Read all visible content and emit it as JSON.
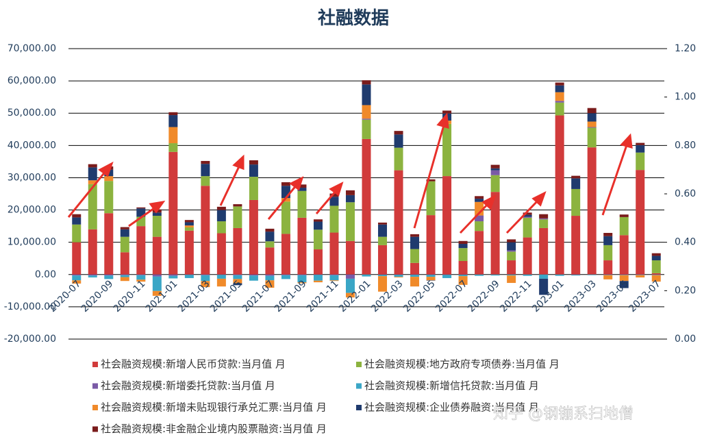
{
  "chart_data": {
    "type": "stacked_bar",
    "title": "社融数据",
    "watermark": "知乎 @钢镚系扫地僧",
    "categories": [
      "2020-07",
      null,
      "2020-09",
      null,
      "2020-11",
      null,
      "2021-01",
      null,
      "2021-03",
      null,
      "2021-05",
      null,
      "2021-07",
      null,
      "2021-09",
      null,
      "2021-11",
      null,
      "2022-01",
      null,
      "2022-03",
      null,
      "2022-05",
      null,
      "2022-07",
      null,
      "2022-09",
      null,
      "2022-11",
      null,
      "2023-01",
      null,
      "2023-03",
      null,
      "2023-05",
      null,
      "2023-07"
    ],
    "series": [
      {
        "name": "社会融资规模:新增人民币贷款:当月值 月",
        "color": "#d13b3b",
        "values": [
          10000,
          14000,
          19000,
          6900,
          15000,
          11700,
          38000,
          13600,
          27500,
          12800,
          14400,
          23100,
          8400,
          12600,
          17600,
          7800,
          13000,
          10400,
          42000,
          9100,
          32300,
          3600,
          18400,
          30500,
          4200,
          13500,
          25600,
          4400,
          11500,
          14400,
          49300,
          18200,
          39400,
          4400,
          12200,
          32400,
          400
        ]
      },
      {
        "name": "社会融资规模:地方政府专项债券:当月值 月",
        "color": "#8cb33f",
        "values": [
          5500,
          14000,
          10000,
          4800,
          2900,
          6500,
          2700,
          1000,
          3000,
          3700,
          6700,
          7200,
          1900,
          10000,
          8300,
          6100,
          8300,
          12000,
          6000,
          2600,
          7000,
          4300,
          10500,
          16200,
          4000,
          3000,
          5200,
          2700,
          6100,
          2700,
          4000,
          8300,
          6100,
          4700,
          5600,
          5400,
          4000
        ]
      },
      {
        "name": "社会融资规模:新增委托贷款:当月值 月",
        "color": "#7a5aa6",
        "values": [
          -300,
          -300,
          -300,
          -200,
          -200,
          -600,
          -400,
          -100,
          -200,
          -100,
          -200,
          -300,
          -400,
          -200,
          -200,
          -100,
          -200,
          -1300,
          300,
          -100,
          -100,
          -100,
          -100,
          -100,
          -100,
          1800,
          1500,
          400,
          300,
          300,
          500,
          -100,
          200,
          -100,
          -100,
          -100,
          -100
        ]
      },
      {
        "name": "社会融资规模:新增信托贷款:当月值 月",
        "color": "#3aa6c6",
        "values": [
          -1500,
          -600,
          -1100,
          -600,
          -1400,
          -4500,
          -800,
          -1000,
          -1800,
          -1200,
          -1200,
          -1600,
          -1400,
          -1200,
          -2200,
          -1800,
          -1600,
          -4400,
          -600,
          -400,
          -600,
          -600,
          -600,
          -1000,
          -400,
          -400,
          -300,
          -300,
          -400,
          -1300,
          -400,
          -200,
          -200,
          -100,
          -100,
          -100,
          -100
        ]
      },
      {
        "name": "社会融资规模:新增未贴现银行承兑汇票:当月值 月",
        "color": "#f08a2a",
        "values": [
          -1000,
          1200,
          1500,
          -1200,
          -600,
          -1500,
          5000,
          600,
          -1900,
          -2400,
          -1300,
          0,
          -2300,
          1100,
          -300,
          -500,
          -200,
          -1400,
          4200,
          -4800,
          -200,
          -3000,
          -1100,
          1000,
          -2700,
          4200,
          0,
          -2300,
          0,
          0,
          2700,
          0,
          1700,
          -1300,
          -1800,
          -700,
          -2000
        ]
      },
      {
        "name": "社会融资规模:企业债券融资:当月值 月",
        "color": "#1f3b6e",
        "values": [
          2200,
          4000,
          2000,
          2300,
          2600,
          1000,
          3700,
          1000,
          3800,
          3500,
          -600,
          3800,
          3000,
          3800,
          1000,
          2500,
          2800,
          2200,
          6400,
          3800,
          4100,
          3800,
          -100,
          2200,
          1300,
          1000,
          600,
          2500,
          600,
          -5000,
          2100,
          3300,
          2600,
          2800,
          -2200,
          2300,
          1400
        ]
      },
      {
        "name": "社会融资规模:非金融企业境内股票融资:当月值 月",
        "color": "#7a1c1c",
        "values": [
          1000,
          1000,
          1000,
          700,
          300,
          1000,
          900,
          700,
          900,
          1000,
          700,
          1300,
          900,
          1100,
          1000,
          700,
          1000,
          1500,
          1300,
          600,
          1100,
          800,
          600,
          900,
          900,
          800,
          1100,
          900,
          700,
          1300,
          900,
          800,
          1600,
          1000,
          800,
          700,
          800
        ]
      }
    ],
    "ylim": [
      -20000,
      70000
    ],
    "yticks": [
      {
        "value": -20000,
        "label": "-20,000.00"
      },
      {
        "value": -10000,
        "label": "-10,000.00"
      },
      {
        "value": 0,
        "label": "0.00"
      },
      {
        "value": 10000,
        "label": "10,000.00"
      },
      {
        "value": 20000,
        "label": "20,000.00"
      },
      {
        "value": 30000,
        "label": "30,000.00"
      },
      {
        "value": 40000,
        "label": "40,000.00"
      },
      {
        "value": 50000,
        "label": "50,000.00"
      },
      {
        "value": 60000,
        "label": "60,000.00"
      },
      {
        "value": 70000,
        "label": "70,000.00"
      }
    ],
    "y2lim": [
      0,
      1.2
    ],
    "y2ticks": [
      {
        "value": 0,
        "label": "0.00"
      },
      {
        "value": 0.2,
        "label": "0.20"
      },
      {
        "value": 0.4,
        "label": "0.40"
      },
      {
        "value": 0.6,
        "label": "0.60"
      },
      {
        "value": 0.8,
        "label": "0.80"
      },
      {
        "value": 1.0,
        "label": "1.00"
      },
      {
        "value": 1.2,
        "label": "1.20"
      }
    ],
    "grid": true
  }
}
